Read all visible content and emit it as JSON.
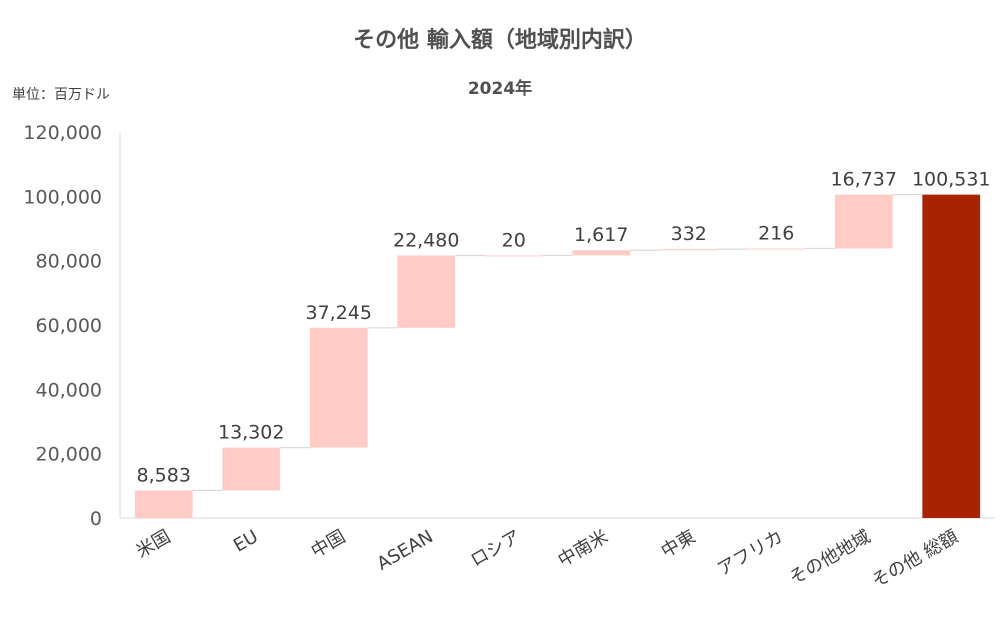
{
  "chart_data": {
    "type": "bar",
    "subtype": "waterfall",
    "title": "その他 輸入額（地域別内訳）",
    "subtitle": "2024年",
    "unit_label": "単位：百万ドル",
    "categories": [
      "米国",
      "EU",
      "中国",
      "ASEAN",
      "ロシア",
      "中南米",
      "中東",
      "アフリカ",
      "その他地域",
      "その他 総額"
    ],
    "values": [
      8583,
      13302,
      37245,
      22480,
      20,
      1617,
      332,
      216,
      16737,
      100531
    ],
    "value_labels": [
      "8,583",
      "13,302",
      "37,245",
      "22,480",
      "20",
      "1,617",
      "332",
      "216",
      "16,737",
      "100,531"
    ],
    "total_index": 9,
    "y_ticks": [
      "0",
      "20,000",
      "40,000",
      "60,000",
      "80,000",
      "100,000",
      "120,000"
    ],
    "ylim": [
      0,
      120000
    ],
    "grid": false,
    "legend": "none",
    "colors": {
      "increase": "#FFCCC5",
      "total": "#A82400",
      "connector": "#D9D9D9",
      "axis": "#D9D9D9"
    }
  }
}
